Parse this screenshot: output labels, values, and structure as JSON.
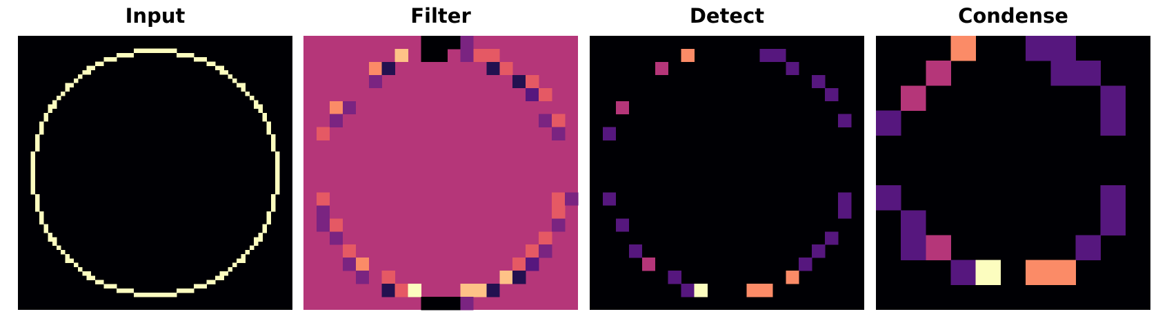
{
  "panels": [
    {
      "title": "Input",
      "grid": 64
    },
    {
      "title": "Filter",
      "grid": 21
    },
    {
      "title": "Detect",
      "grid": 21
    },
    {
      "title": "Condense",
      "grid": 11
    }
  ],
  "colors": {
    "black": "#000004",
    "deep_purple": "#231150",
    "purple": "#56177e",
    "violet": "#7a2481",
    "magenta": "#b53679",
    "coral": "#e55964",
    "salmon": "#fb8b67",
    "peach": "#fec287",
    "cream": "#fcfdbf"
  },
  "filter": {
    "background": "magenta",
    "cells": [
      [
        9,
        0,
        "black"
      ],
      [
        10,
        0,
        "black"
      ],
      [
        11,
        0,
        "black"
      ],
      [
        12,
        0,
        "violet"
      ],
      [
        7,
        1,
        "peach"
      ],
      [
        9,
        1,
        "black"
      ],
      [
        10,
        1,
        "black"
      ],
      [
        12,
        1,
        "violet"
      ],
      [
        13,
        1,
        "coral"
      ],
      [
        14,
        1,
        "coral"
      ],
      [
        5,
        2,
        "salmon"
      ],
      [
        6,
        2,
        "deep_purple"
      ],
      [
        14,
        2,
        "deep_purple"
      ],
      [
        15,
        2,
        "coral"
      ],
      [
        5,
        3,
        "violet"
      ],
      [
        16,
        3,
        "deep_purple"
      ],
      [
        17,
        3,
        "coral"
      ],
      [
        17,
        4,
        "purple"
      ],
      [
        18,
        4,
        "coral"
      ],
      [
        2,
        5,
        "salmon"
      ],
      [
        3,
        5,
        "violet"
      ],
      [
        2,
        6,
        "violet"
      ],
      [
        18,
        6,
        "violet"
      ],
      [
        19,
        6,
        "coral"
      ],
      [
        1,
        7,
        "coral"
      ],
      [
        19,
        7,
        "violet"
      ],
      [
        1,
        12,
        "coral"
      ],
      [
        19,
        12,
        "coral"
      ],
      [
        20,
        12,
        "violet"
      ],
      [
        1,
        13,
        "violet"
      ],
      [
        19,
        13,
        "coral"
      ],
      [
        1,
        14,
        "violet"
      ],
      [
        2,
        14,
        "coral"
      ],
      [
        19,
        14,
        "violet"
      ],
      [
        2,
        15,
        "violet"
      ],
      [
        18,
        15,
        "coral"
      ],
      [
        3,
        16,
        "coral"
      ],
      [
        17,
        16,
        "coral"
      ],
      [
        18,
        16,
        "violet"
      ],
      [
        3,
        17,
        "violet"
      ],
      [
        4,
        17,
        "salmon"
      ],
      [
        16,
        17,
        "coral"
      ],
      [
        17,
        17,
        "purple"
      ],
      [
        4,
        18,
        "violet"
      ],
      [
        6,
        18,
        "coral"
      ],
      [
        15,
        18,
        "peach"
      ],
      [
        16,
        18,
        "deep_purple"
      ],
      [
        6,
        19,
        "deep_purple"
      ],
      [
        7,
        19,
        "coral"
      ],
      [
        8,
        19,
        "cream"
      ],
      [
        12,
        19,
        "peach"
      ],
      [
        13,
        19,
        "peach"
      ],
      [
        14,
        19,
        "deep_purple"
      ],
      [
        9,
        20,
        "black"
      ],
      [
        10,
        20,
        "black"
      ],
      [
        11,
        20,
        "black"
      ],
      [
        12,
        20,
        "violet"
      ]
    ]
  },
  "detect": {
    "background": "black",
    "cells": [
      [
        7,
        1,
        "salmon"
      ],
      [
        13,
        1,
        "purple"
      ],
      [
        14,
        1,
        "purple"
      ],
      [
        5,
        2,
        "magenta"
      ],
      [
        15,
        2,
        "purple"
      ],
      [
        17,
        3,
        "purple"
      ],
      [
        18,
        4,
        "purple"
      ],
      [
        2,
        5,
        "magenta"
      ],
      [
        19,
        6,
        "purple"
      ],
      [
        1,
        7,
        "purple"
      ],
      [
        1,
        12,
        "purple"
      ],
      [
        19,
        12,
        "purple"
      ],
      [
        19,
        13,
        "purple"
      ],
      [
        2,
        14,
        "purple"
      ],
      [
        18,
        15,
        "purple"
      ],
      [
        3,
        16,
        "purple"
      ],
      [
        17,
        16,
        "purple"
      ],
      [
        4,
        17,
        "magenta"
      ],
      [
        16,
        17,
        "purple"
      ],
      [
        6,
        18,
        "purple"
      ],
      [
        15,
        18,
        "salmon"
      ],
      [
        7,
        19,
        "purple"
      ],
      [
        8,
        19,
        "cream"
      ],
      [
        12,
        19,
        "salmon"
      ],
      [
        13,
        19,
        "salmon"
      ]
    ]
  },
  "condense": {
    "background": "black",
    "cells": [
      [
        3,
        0,
        "salmon"
      ],
      [
        6,
        0,
        "purple"
      ],
      [
        7,
        0,
        "purple"
      ],
      [
        2,
        1,
        "magenta"
      ],
      [
        7,
        1,
        "purple"
      ],
      [
        8,
        1,
        "purple"
      ],
      [
        1,
        2,
        "magenta"
      ],
      [
        9,
        2,
        "purple"
      ],
      [
        0,
        3,
        "purple"
      ],
      [
        9,
        3,
        "purple"
      ],
      [
        0,
        6,
        "purple"
      ],
      [
        9,
        6,
        "purple"
      ],
      [
        1,
        7,
        "purple"
      ],
      [
        9,
        7,
        "purple"
      ],
      [
        1,
        8,
        "purple"
      ],
      [
        2,
        8,
        "magenta"
      ],
      [
        8,
        8,
        "purple"
      ],
      [
        3,
        9,
        "purple"
      ],
      [
        4,
        9,
        "cream"
      ],
      [
        6,
        9,
        "salmon"
      ],
      [
        7,
        9,
        "salmon"
      ]
    ]
  },
  "input": {
    "background": "#000004",
    "ring_color": "#fcfdbf",
    "center": [
      32,
      32
    ],
    "radius": 28.5
  }
}
